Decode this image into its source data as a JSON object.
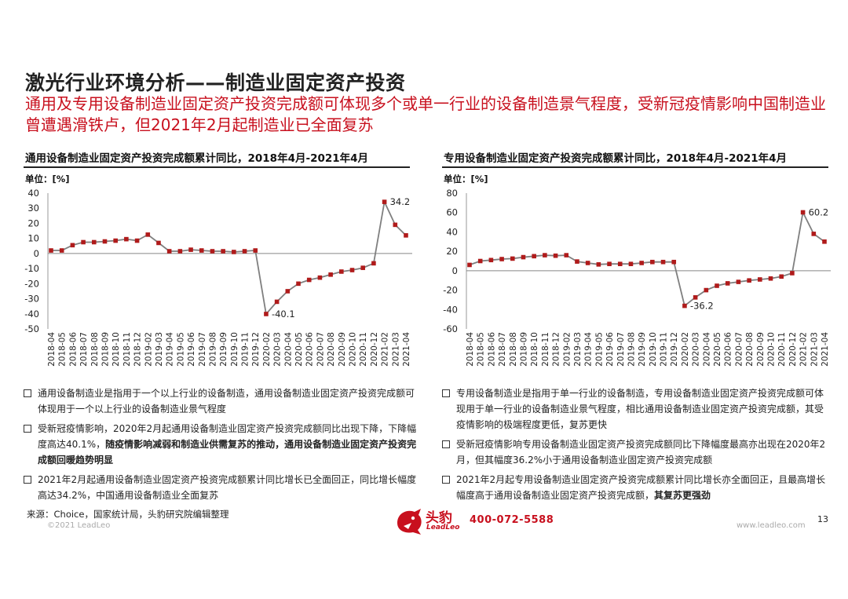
{
  "header": {
    "title": "激光行业环境分析——制造业固定资产投资",
    "subtitle": "通用及专用设备制造业固定资产投资完成额可体现多个或单一行业的设备制造景气程度，受新冠疫情影响中国制造业曾遭遇滑铁卢，但2021年2月起制造业已全面复苏"
  },
  "colors": {
    "accent": "#c8101e",
    "line": "#7f7f7f",
    "marker": "#b01b1b"
  },
  "chart_data": [
    {
      "type": "line",
      "title": "通用设备制造业固定资产投资完成额累计同比，2018年4月-2021年4月",
      "unit": "单位：[%]",
      "ylim": [
        -50,
        40
      ],
      "yticks": [
        40,
        30,
        20,
        10,
        0,
        -10,
        -20,
        -30,
        -40,
        -50
      ],
      "categories": [
        "2018-04",
        "2018-05",
        "2018-06",
        "2018-07",
        "2018-08",
        "2018-09",
        "2018-10",
        "2018-11",
        "2018-12",
        "2019-02",
        "2019-03",
        "2019-04",
        "2019-05",
        "2019-06",
        "2019-07",
        "2019-08",
        "2019-09",
        "2019-10",
        "2019-11",
        "2019-12",
        "2020-02",
        "2020-03",
        "2020-04",
        "2020-05",
        "2020-06",
        "2020-07",
        "2020-08",
        "2020-09",
        "2020-10",
        "2020-11",
        "2020-12",
        "2021-02",
        "2021-03",
        "2021-04"
      ],
      "values": [
        2,
        2,
        5.5,
        7.5,
        7.5,
        8,
        8.5,
        9.5,
        8.5,
        12.5,
        7,
        1.5,
        1.5,
        2.5,
        2,
        1.5,
        1.5,
        1,
        1.5,
        2,
        -40.1,
        -32,
        -25,
        -20,
        -17.5,
        -16,
        -14,
        -12,
        -11,
        -9.5,
        -6.5,
        34.2,
        19,
        12
      ],
      "annotations": [
        {
          "index": 31,
          "label": "34.2"
        },
        {
          "index": 20,
          "label": "-40.1"
        }
      ]
    },
    {
      "type": "line",
      "title": "专用设备制造业固定资产投资完成额累计同比，2018年4月-2021年4月",
      "unit": "单位：[%]",
      "ylim": [
        -60,
        80
      ],
      "yticks": [
        80,
        60,
        40,
        20,
        0,
        -20,
        -40,
        -60
      ],
      "categories": [
        "2018-04",
        "2018-05",
        "2018-06",
        "2018-07",
        "2018-08",
        "2018-09",
        "2018-10",
        "2018-11",
        "2018-12",
        "2019-02",
        "2019-03",
        "2019-04",
        "2019-05",
        "2019-06",
        "2019-07",
        "2019-08",
        "2019-09",
        "2019-10",
        "2019-11",
        "2019-12",
        "2020-02",
        "2020-03",
        "2020-04",
        "2020-05",
        "2020-06",
        "2020-07",
        "2020-08",
        "2020-09",
        "2020-10",
        "2020-11",
        "2020-12",
        "2021-02",
        "2021-03",
        "2021-04"
      ],
      "values": [
        6,
        10,
        11,
        12,
        12.5,
        14,
        15,
        16,
        15.5,
        16,
        9.5,
        8,
        6.5,
        7,
        7,
        7,
        8,
        9,
        9,
        9,
        -36.2,
        -27.5,
        -20,
        -15.5,
        -13,
        -11.5,
        -10,
        -9,
        -8,
        -6,
        -2.5,
        60.2,
        38,
        30
      ],
      "annotations": [
        {
          "index": 31,
          "label": "60.2"
        },
        {
          "index": 20,
          "label": "-36.2"
        }
      ]
    }
  ],
  "notes_left": [
    {
      "text": "通用设备制造业是指用于一个以上行业的设备制造，通用设备制造业固定资产投资完成额可体现用于一个以上行业的设备制造业景气程度"
    },
    {
      "text": "受新冠疫情影响，2020年2月起通用设备制造业固定资产投资完成额同比出现下降，下降幅度高达40.1%，",
      "bold": "随疫情影响减弱和制造业供需复苏的推动，通用设备制造业固定资产投资完成额回暖趋势明显"
    },
    {
      "text": "2021年2月起通用设备制造业固定资产投资完成额累计同比增长已全面回正，同比增长幅度高达34.2%，中国通用设备制造业全面复苏"
    }
  ],
  "notes_right": [
    {
      "text": "专用设备制造业是指用于单一行业的设备制造，专用设备制造业固定资产投资完成额可体现用于单一行业的设备制造业景气程度，相比通用设备制造业固定资产投资完成额，其受疫情影响的极端程度更低，复苏更快"
    },
    {
      "text": "受新冠疫情影响专用设备制造业固定资产投资完成额同比下降幅度最高亦出现在2020年2月，但其幅度36.2%小于通用设备制造业固定资产投资完成额"
    },
    {
      "text": "2021年2月起专用设备制造业固定资产投资完成额累计同比增长亦全面回正，且最高增长幅度高于通用设备制造业固定资产投资完成额，",
      "bold": "其复苏更强劲"
    }
  ],
  "footer": {
    "source": "来源：Choice，国家统计局，头豹研究院编辑整理",
    "copyright": "©2021 LeadLeo",
    "logo_text": "头豹",
    "logo_sub": "LeadLeo",
    "phone": "400-072-5588",
    "website": "www.leadleo.com",
    "page": "13"
  }
}
